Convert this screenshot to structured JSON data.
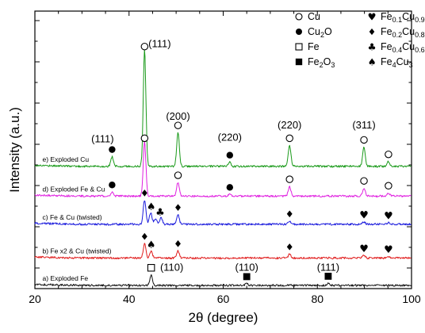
{
  "chart_data": {
    "type": "line",
    "xlabel": "2θ (degree)",
    "ylabel": "Intensity (a.u.)",
    "xlim": [
      20,
      100
    ],
    "xticks": [
      20,
      40,
      60,
      80,
      100
    ],
    "grid": false,
    "legend_position": "top-right",
    "legend": [
      {
        "marker": "open-circle",
        "name": "Cu"
      },
      {
        "marker": "filled-circle",
        "name": "Cu",
        "sub": "2",
        "tail": "O"
      },
      {
        "marker": "open-square",
        "name": "Fe"
      },
      {
        "marker": "filled-square",
        "name": "Fe",
        "sub": "2",
        "tail": "O",
        "sub2": "3"
      },
      {
        "marker": "heart",
        "name": "Fe",
        "sub": "0.1",
        "tail": "Cu",
        "sub2": "0.9"
      },
      {
        "marker": "diamond",
        "name": "Fe",
        "sub": "0.2",
        "tail": "Cu",
        "sub2": "0.8"
      },
      {
        "marker": "club",
        "name": "Fe",
        "sub": "0.4",
        "tail": "Cu",
        "sub2": "0.6"
      },
      {
        "marker": "spade",
        "name": "Fe",
        "sub": "4",
        "tail": "Cu",
        "sub2": "3"
      }
    ],
    "series": [
      {
        "label": "e) Exploded Cu",
        "color": "#1a9a1a",
        "baseline": 152,
        "peaks": [
          [
            36.4,
            12
          ],
          [
            43.3,
            145
          ],
          [
            50.4,
            42
          ],
          [
            61.4,
            5
          ],
          [
            74.1,
            26
          ],
          [
            89.9,
            24
          ],
          [
            95.1,
            6
          ]
        ],
        "markers": [
          [
            "filled-circle",
            36.4
          ],
          [
            "open-circle",
            43.3
          ],
          [
            "open-circle",
            50.4
          ],
          [
            "filled-circle",
            61.4
          ],
          [
            "open-circle",
            74.1
          ],
          [
            "open-circle",
            89.9
          ],
          [
            "open-circle",
            95.1
          ]
        ]
      },
      {
        "label": "d) Exploded Fe & Cu",
        "color": "#e020e0",
        "baseline": 115,
        "peaks": [
          [
            36.4,
            5
          ],
          [
            43.3,
            68
          ],
          [
            50.4,
            17
          ],
          [
            61.4,
            2
          ],
          [
            74.1,
            12
          ],
          [
            89.9,
            10
          ],
          [
            95.1,
            4
          ]
        ],
        "markers": [
          [
            "filled-circle",
            36.4
          ],
          [
            "open-circle",
            43.3
          ],
          [
            "open-circle",
            50.4
          ],
          [
            "filled-circle",
            61.4
          ],
          [
            "open-circle",
            74.1
          ],
          [
            "open-circle",
            89.9
          ],
          [
            "open-circle",
            95.1
          ]
        ]
      },
      {
        "label": "c) Fe & Cu (twisted)",
        "color": "#1a1adc",
        "baseline": 80,
        "peaks": [
          [
            43.3,
            30
          ],
          [
            44.6,
            14
          ],
          [
            45.6,
            7
          ],
          [
            46.8,
            8
          ],
          [
            50.4,
            12
          ],
          [
            74.1,
            4
          ],
          [
            89.9,
            3
          ],
          [
            95.1,
            2
          ]
        ],
        "markers": [
          [
            "diamond",
            43.3
          ],
          [
            "spade",
            44.7
          ],
          [
            "club",
            46.6
          ],
          [
            "diamond",
            50.4
          ],
          [
            "diamond",
            74.1
          ],
          [
            "heart",
            89.9
          ],
          [
            "heart",
            95.1
          ]
        ]
      },
      {
        "label": "b) Fe x2 & Cu (twisted)",
        "color": "#e01a1a",
        "baseline": 38,
        "peaks": [
          [
            43.3,
            18
          ],
          [
            44.7,
            8
          ],
          [
            50.4,
            9
          ],
          [
            74.1,
            5
          ],
          [
            89.9,
            3
          ],
          [
            95.1,
            2
          ]
        ],
        "markers": [
          [
            "diamond",
            43.3
          ],
          [
            "spade",
            44.7
          ],
          [
            "diamond",
            50.4
          ],
          [
            "diamond",
            74.1
          ],
          [
            "heart",
            89.9
          ],
          [
            "heart",
            95.1
          ]
        ]
      },
      {
        "label": "a) Exploded Fe",
        "color": "#111111",
        "baseline": 4,
        "peaks": [
          [
            44.7,
            13
          ],
          [
            65.0,
            2
          ],
          [
            82.3,
            2.5
          ]
        ],
        "markers": [
          [
            "open-square",
            44.7
          ],
          [
            "filled-square",
            65.0
          ],
          [
            "filled-square",
            82.3
          ]
        ]
      }
    ],
    "annotations": [
      {
        "text": "(111)",
        "x": 43.3,
        "series": 0,
        "dy": 148,
        "dx": 19
      },
      {
        "text": "(200)",
        "x": 50.4,
        "series": 0,
        "dy": 58,
        "dx": 0
      },
      {
        "text": "(220)",
        "x": 61.4,
        "series": 0,
        "dy": 32,
        "dx": 0
      },
      {
        "text": "(220)",
        "x": 74.1,
        "series": 0,
        "dy": 47,
        "dx": 0
      },
      {
        "text": "(311)",
        "x": 89.9,
        "series": 0,
        "dy": 47,
        "dx": 0
      },
      {
        "text": "(111)",
        "x": 36.4,
        "series": 0,
        "dy": 30,
        "dx": -12
      },
      {
        "text": "(110)",
        "x": 44.7,
        "series": 4,
        "dy": 18,
        "dx": 26
      },
      {
        "text": "(110)",
        "x": 65.0,
        "series": 4,
        "dy": 18,
        "dx": 0
      },
      {
        "text": "(111)",
        "x": 82.3,
        "series": 4,
        "dy": 18,
        "dx": 0
      }
    ]
  }
}
